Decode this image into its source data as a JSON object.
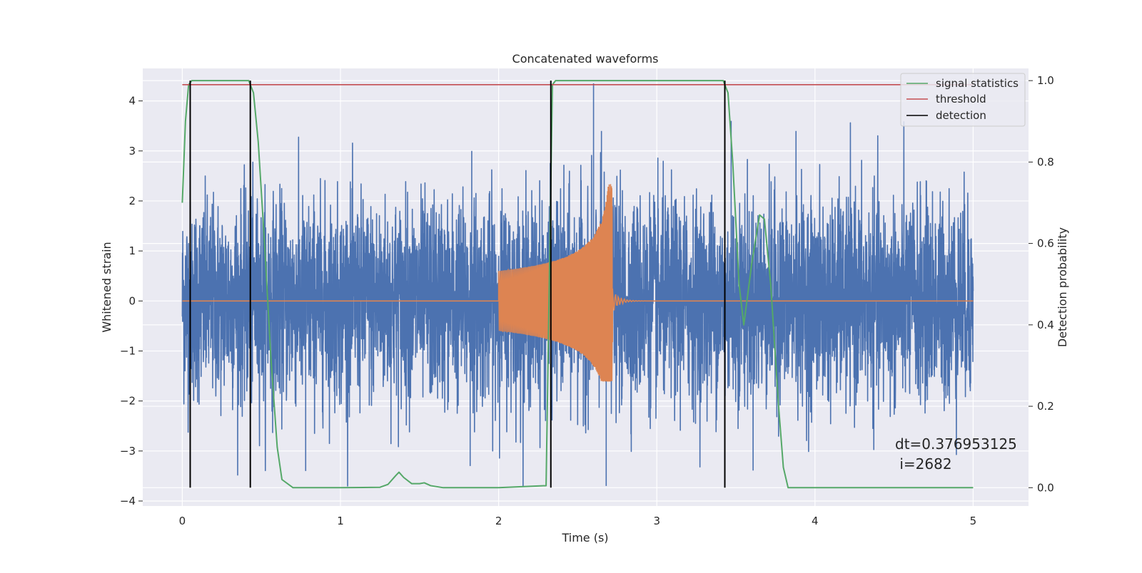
{
  "chart_data": {
    "type": "line",
    "title": "Concatenated waveforms",
    "xlabel": "Time (s)",
    "ylabel": "Whitened strain",
    "y2label": "Detection probability",
    "xlim": [
      -0.25,
      5.35
    ],
    "ylim": [
      -4.1,
      4.65
    ],
    "y2lim": [
      -0.045,
      1.03
    ],
    "xticks": [
      0,
      1,
      2,
      3,
      4,
      5
    ],
    "yticks": [
      -4,
      -3,
      -2,
      -1,
      0,
      1,
      2,
      3,
      4
    ],
    "y2ticks": [
      0.0,
      0.2,
      0.4,
      0.6,
      0.8,
      1.0
    ],
    "xtick_labels": [
      "0",
      "1",
      "2",
      "3",
      "4",
      "5"
    ],
    "ytick_labels": [
      "−4",
      "−3",
      "−2",
      "−1",
      "0",
      "1",
      "2",
      "3",
      "4"
    ],
    "y2tick_labels": [
      "0.0",
      "0.2",
      "0.4",
      "0.6",
      "0.8",
      "1.0"
    ],
    "grid": true,
    "legend_position": "top-right",
    "legend": [
      {
        "label": "signal statistics",
        "color": "#55a868"
      },
      {
        "label": "threshold",
        "color": "#c44e52"
      },
      {
        "label": "detection",
        "color": "#000000"
      }
    ],
    "series": [
      {
        "name": "signal statistics",
        "axis": "right",
        "color": "#55a868",
        "x": [
          0.0,
          0.02,
          0.04,
          0.06,
          0.08,
          0.1,
          0.3,
          0.42,
          0.45,
          0.48,
          0.52,
          0.56,
          0.6,
          0.63,
          0.7,
          1.0,
          1.25,
          1.3,
          1.35,
          1.37,
          1.4,
          1.45,
          1.5,
          1.53,
          1.57,
          1.65,
          2.0,
          2.3,
          2.32,
          2.34,
          2.36,
          2.4,
          3.3,
          3.42,
          3.45,
          3.48,
          3.52,
          3.55,
          3.6,
          3.65,
          3.68,
          3.72,
          3.77,
          3.8,
          3.83,
          4.0,
          5.0
        ],
        "values": [
          0.7,
          0.9,
          0.99,
          1.0,
          1.0,
          1.0,
          1.0,
          1.0,
          0.97,
          0.85,
          0.6,
          0.32,
          0.1,
          0.02,
          0.0,
          0.0,
          0.001,
          0.008,
          0.03,
          0.038,
          0.025,
          0.01,
          0.01,
          0.012,
          0.005,
          0.0,
          0.0,
          0.005,
          0.5,
          0.99,
          1.0,
          1.0,
          1.0,
          1.0,
          0.97,
          0.8,
          0.5,
          0.4,
          0.55,
          0.67,
          0.66,
          0.5,
          0.2,
          0.05,
          0.0,
          0.0,
          0.0
        ]
      },
      {
        "name": "threshold",
        "axis": "right",
        "color": "#c44e52",
        "x": [
          0.0,
          5.0
        ],
        "values": [
          0.99,
          0.99
        ]
      }
    ],
    "noise": {
      "axis": "left",
      "color": "#4c72b0",
      "x_range": [
        0.0,
        5.0
      ],
      "typical_amplitude": 1.0,
      "peak_values": [
        4.35,
        3.6,
        3.4,
        3.0
      ],
      "min_value": -3.7
    },
    "chirp": {
      "axis": "left",
      "color": "#dd8452",
      "x_start": 2.0,
      "x_end": 2.72,
      "start_amplitude": 0.6,
      "peak_max": 2.35,
      "peak_min": -1.6
    },
    "detections": {
      "color": "#000000",
      "x": [
        0.05,
        0.43,
        2.33,
        3.43
      ],
      "y2_range": [
        0.0,
        1.0
      ]
    },
    "annotation": {
      "lines": [
        "dt=0.376953125",
        " i=2682"
      ],
      "anchor_x": 4.5,
      "anchor_y": -3.3
    }
  }
}
